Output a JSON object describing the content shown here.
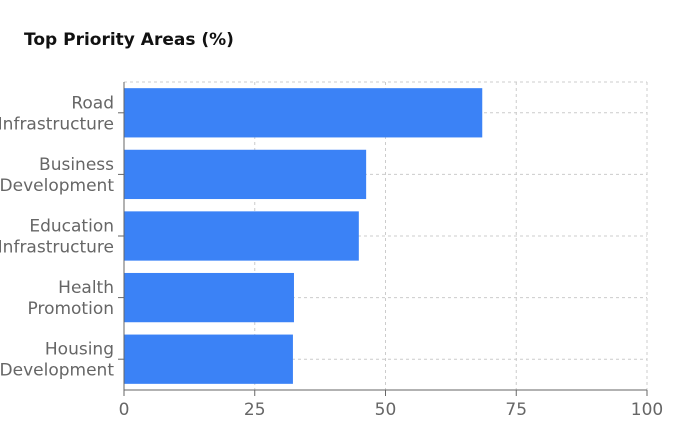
{
  "chart_data": {
    "type": "bar",
    "orientation": "horizontal",
    "title": "Top Priority Areas (%)",
    "categories": [
      "Road Infrastructure",
      "Business Development",
      "Education Infrastructure",
      "Health Promotion",
      "Housing Development"
    ],
    "values": [
      68.5,
      46.3,
      44.9,
      32.5,
      32.3
    ],
    "color": "#3b82f6",
    "xlim": [
      0,
      100
    ],
    "xticks": [
      0,
      25,
      50,
      75,
      100
    ],
    "grid": true
  }
}
